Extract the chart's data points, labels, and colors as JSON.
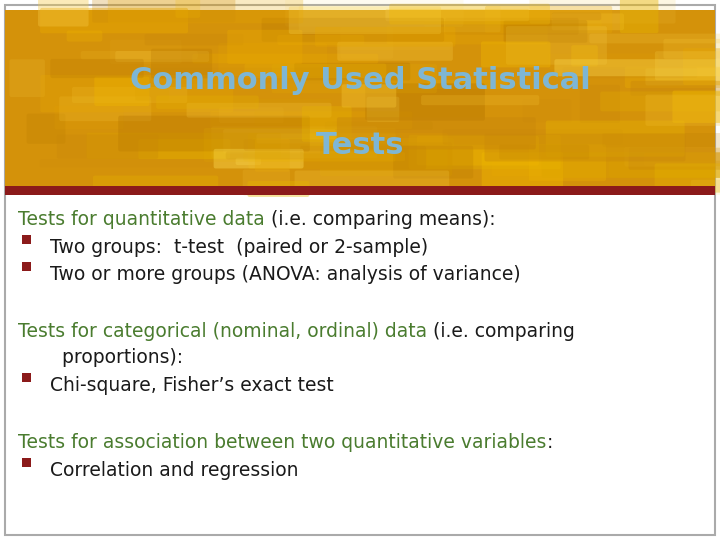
{
  "title_line1": "Commonly Used Statistical",
  "title_line2": "Tests",
  "title_color": "#7eb6d4",
  "divider_color": "#8b1a1a",
  "slide_bg": "#ffffff",
  "slide_border": "#aaaaaa",
  "green_color": "#4a7c2f",
  "black_color": "#1a1a1a",
  "bullet_color": "#8b1a1a",
  "header_bg": "#e8a800",
  "section1_green": "Tests for quantitative data ",
  "section1_black": "(i.e. comparing means):",
  "bullet1_1": "Two groups:  t-test  (paired or 2-sample)",
  "bullet1_2": "Two or more groups (ANOVA: analysis of variance)",
  "section2_green": "Tests for categorical (nominal, ordinal) data ",
  "section2_black": "(i.e. comparing",
  "section2_cont": "    proportions):",
  "bullet2_1": "Chi-square, Fisher’s exact test",
  "section3_green": "Tests for association between two quantitative variables",
  "section3_black": ":",
  "bullet3_1": "Correlation and regression",
  "font_size_title": 22,
  "font_size_body": 13.5
}
